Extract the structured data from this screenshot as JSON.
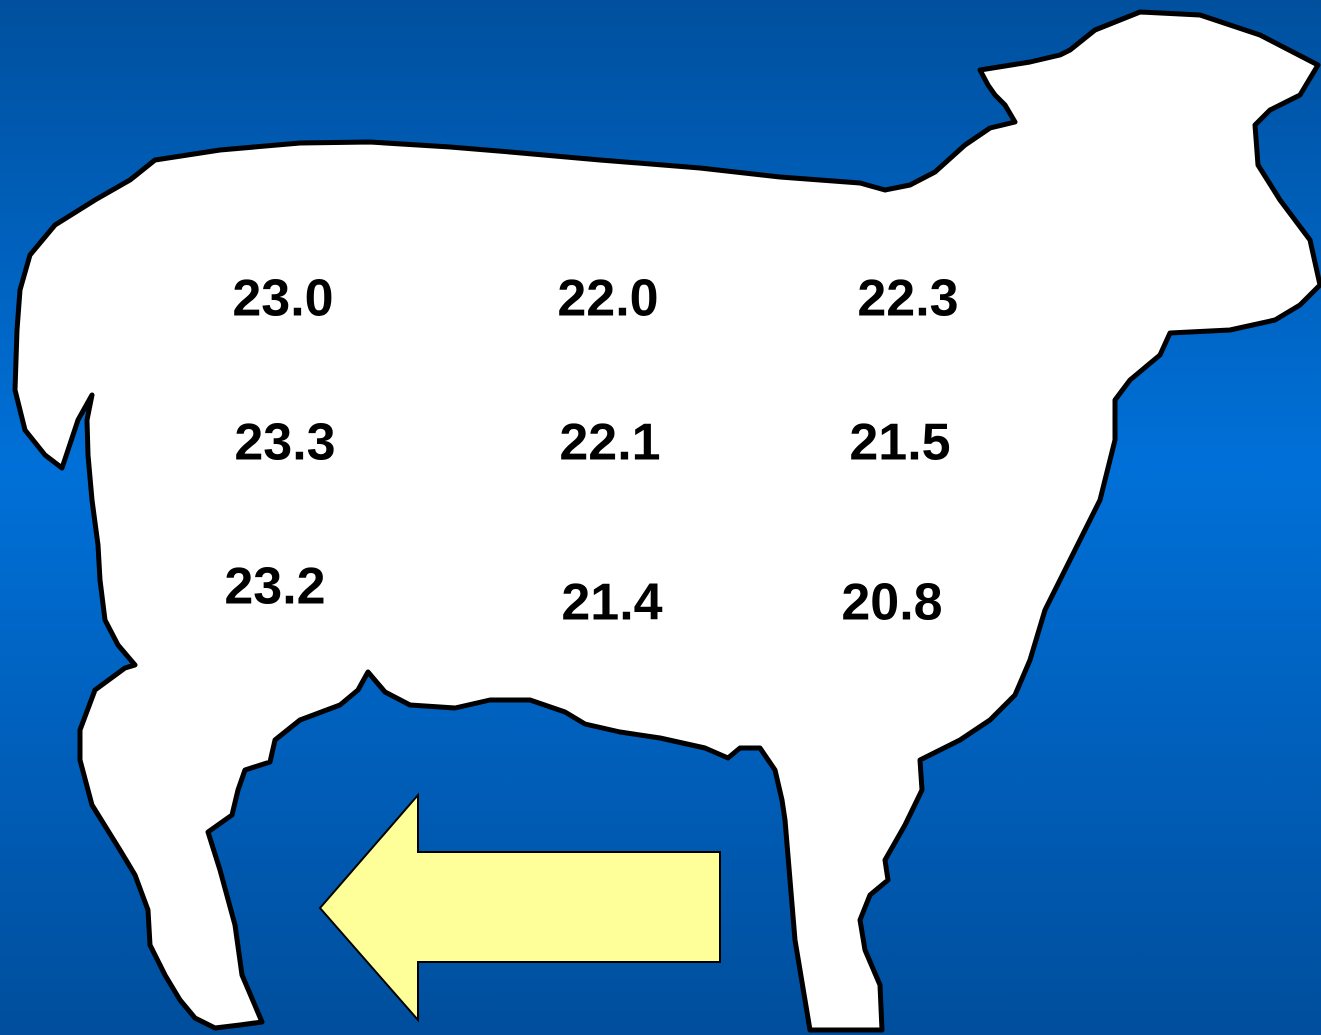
{
  "grid": {
    "rows": [
      [
        "23.0",
        "22.0",
        "22.3"
      ],
      [
        "23.3",
        "22.1",
        "21.5"
      ],
      [
        "23.2",
        "21.4",
        "20.8"
      ]
    ]
  }
}
